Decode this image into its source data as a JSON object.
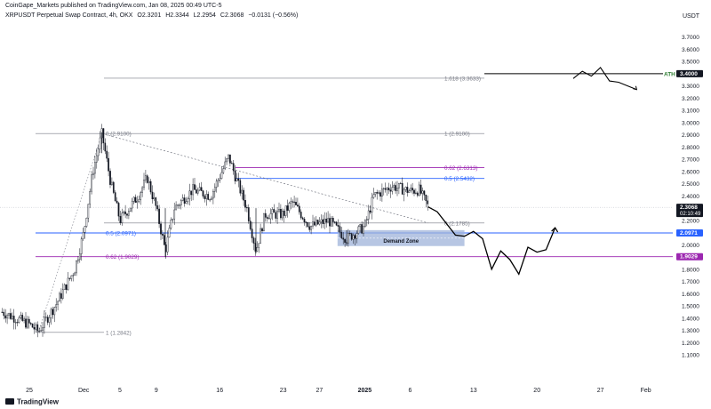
{
  "header": {
    "published": "CoinGape_Markets published on TradingView.com, Jan 08, 2025 00:49 UTC-5",
    "symbol": "XRPUSDT Perpetual Swap Contract, 4h, OKX",
    "ohlc": {
      "open": "O2.3201",
      "high": "H2.3344",
      "low": "L2.2954",
      "close": "C2.3068",
      "change": "−0.0131 (−0.56%)"
    }
  },
  "currency": "USDT",
  "footer": {
    "brand": "TradingView"
  },
  "colors": {
    "candle": "#131722",
    "fib_grey": "#787b86",
    "fib_blue": "#2962ff",
    "fib_purple": "#9c27b0",
    "zone_fill": "#9fb3d9",
    "price_tag": "#131722"
  },
  "chart_data": {
    "type": "candlestick",
    "title": "XRPUSDT Perpetual Swap Contract, 4h, OKX",
    "ylabel": "USDT",
    "ylim": [
      1.05,
      3.8
    ],
    "x_ticks": [
      "25",
      "Dec",
      "5",
      "9",
      "16",
      "23",
      "27",
      "2025",
      "6",
      "13",
      "20",
      "27",
      "Feb"
    ],
    "y_ticks": [
      "3.7000",
      "3.6000",
      "3.5000",
      "3.4000",
      "3.3000",
      "3.2000",
      "3.1000",
      "3.0000",
      "2.9000",
      "2.8000",
      "2.7000",
      "2.6000",
      "2.5000",
      "2.4000",
      "2.3000",
      "2.2000",
      "2.1000",
      "2.0000",
      "1.9000",
      "1.8000",
      "1.7000",
      "1.6000",
      "1.5000",
      "1.4000",
      "1.3000",
      "1.2000",
      "1.1000"
    ],
    "price_key_points": [
      {
        "date": "Nov 22",
        "price": 1.45
      },
      {
        "date": "Nov 25",
        "price": 1.35
      },
      {
        "date": "Nov 26",
        "price": 1.29
      },
      {
        "date": "Nov 28",
        "price": 1.52
      },
      {
        "date": "Nov 30",
        "price": 1.8
      },
      {
        "date": "Dec 1",
        "price": 2.1
      },
      {
        "date": "Dec 2",
        "price": 2.6
      },
      {
        "date": "Dec 3",
        "price": 2.91
      },
      {
        "date": "Dec 4",
        "price": 2.5
      },
      {
        "date": "Dec 5",
        "price": 2.2
      },
      {
        "date": "Dec 7",
        "price": 2.4
      },
      {
        "date": "Dec 8",
        "price": 2.55
      },
      {
        "date": "Dec 9",
        "price": 2.3
      },
      {
        "date": "Dec 10",
        "price": 1.95
      },
      {
        "date": "Dec 11",
        "price": 2.3
      },
      {
        "date": "Dec 13",
        "price": 2.45
      },
      {
        "date": "Dec 15",
        "price": 2.4
      },
      {
        "date": "Dec 17",
        "price": 2.72
      },
      {
        "date": "Dec 18",
        "price": 2.5
      },
      {
        "date": "Dec 19",
        "price": 2.3
      },
      {
        "date": "Dec 20",
        "price": 1.95
      },
      {
        "date": "Dec 21",
        "price": 2.25
      },
      {
        "date": "Dec 23",
        "price": 2.25
      },
      {
        "date": "Dec 24",
        "price": 2.35
      },
      {
        "date": "Dec 26",
        "price": 2.15
      },
      {
        "date": "Dec 28",
        "price": 2.2
      },
      {
        "date": "Dec 30",
        "price": 2.05
      },
      {
        "date": "Jan 1",
        "price": 2.15
      },
      {
        "date": "Jan 2",
        "price": 2.4
      },
      {
        "date": "Jan 4",
        "price": 2.48
      },
      {
        "date": "Jan 6",
        "price": 2.44
      },
      {
        "date": "Jan 7",
        "price": 2.45
      },
      {
        "date": "Jan 8",
        "price": 2.31
      }
    ],
    "projection_path": [
      {
        "date": "Jan 8",
        "price": 2.31
      },
      {
        "date": "Jan 9",
        "price": 2.27
      },
      {
        "date": "Jan 11",
        "price": 2.08
      },
      {
        "date": "Jan 12",
        "price": 2.07
      },
      {
        "date": "Jan 13",
        "price": 2.11
      },
      {
        "date": "Jan 14",
        "price": 2.05
      },
      {
        "date": "Jan 15",
        "price": 1.8
      },
      {
        "date": "Jan 16",
        "price": 1.95
      },
      {
        "date": "Jan 17",
        "price": 1.88
      },
      {
        "date": "Jan 18",
        "price": 1.76
      },
      {
        "date": "Jan 19",
        "price": 1.98
      },
      {
        "date": "Jan 20",
        "price": 1.94
      },
      {
        "date": "Jan 21",
        "price": 1.96
      },
      {
        "date": "Jan 22",
        "price": 2.14
      }
    ],
    "ath_path": [
      {
        "date": "Jan 24",
        "price": 3.36
      },
      {
        "date": "Jan 25",
        "price": 3.42
      },
      {
        "date": "Jan 26",
        "price": 3.38
      },
      {
        "date": "Jan 27",
        "price": 3.45
      },
      {
        "date": "Jan 28",
        "price": 3.34
      },
      {
        "date": "Jan 29",
        "price": 3.33
      },
      {
        "date": "Jan 30",
        "price": 3.3
      },
      {
        "date": "Jan 31",
        "price": 3.27
      }
    ],
    "fib_levels": [
      {
        "label": "1.618 (3.3633)",
        "price": 3.3633,
        "color": "#787b86"
      },
      {
        "label": "1 (2.9100)",
        "price": 2.91,
        "color": "#787b86"
      },
      {
        "label": "0.62 (2.6313)",
        "price": 2.6313,
        "color": "#9c27b0"
      },
      {
        "label": "0.5 (2.5432)",
        "price": 2.5432,
        "color": "#2962ff"
      },
      {
        "label": "0 (2.1785)",
        "price": 2.1785,
        "color": "#787b86"
      },
      {
        "label": "0 (2.9100)",
        "price": 2.91,
        "color": "#787b86"
      },
      {
        "label": "0.5 (2.0971)",
        "price": 2.0971,
        "color": "#2962ff"
      },
      {
        "label": "0.62 (1.9029)",
        "price": 1.9029,
        "color": "#9c27b0"
      },
      {
        "label": "1 (1.2842)",
        "price": 1.2842,
        "color": "#787b86"
      }
    ],
    "demand_zone": {
      "label": "Demand Zone",
      "top": 2.12,
      "bottom": 1.99,
      "from": "Dec 29",
      "to": "Jan 12"
    },
    "ath": {
      "label": "ATH",
      "price": 3.4,
      "tag": "3.4000"
    },
    "price_tags": [
      {
        "text": "3.4000",
        "price": 3.4,
        "style": "dark"
      },
      {
        "text": "2.3068",
        "sub": "02:10:49",
        "price": 2.3068,
        "style": "dark"
      },
      {
        "text": "2.0971",
        "price": 2.0971,
        "style": "blue"
      },
      {
        "text": "1.9029",
        "price": 1.9029,
        "style": "purple"
      }
    ]
  }
}
